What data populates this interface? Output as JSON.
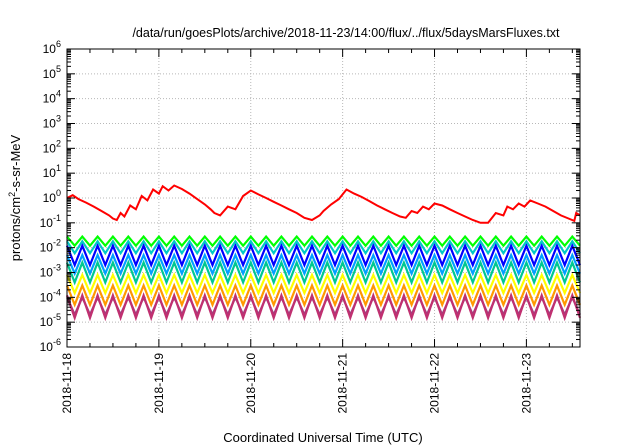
{
  "chart_data": {
    "type": "line",
    "title": "/data/run/goesPlots/archive/2018-11-23/14:00/flux/../flux/5daysMarsFluxes.txt",
    "xlabel": "Coordinated Universal Time (UTC)",
    "ylabel": {
      "base": "protons/cm",
      "sup": "2",
      "rest": "-s-sr-MeV"
    },
    "yscale": "log",
    "ylim": [
      1e-06,
      1000000.0
    ],
    "xlim": [
      "2018-11-18T00:00",
      "2018-11-23T14:00"
    ],
    "y_tick_exponents": [
      -6,
      -5,
      -4,
      -3,
      -2,
      -1,
      0,
      1,
      2,
      3,
      4,
      5,
      6
    ],
    "x_ticks": [
      "2018-11-18",
      "2018-11-19",
      "2018-11-20",
      "2018-11-21",
      "2018-11-22",
      "2018-11-23"
    ],
    "grid": true,
    "legend": "none",
    "series": [
      {
        "color": "#ff0000",
        "x": [
          "2018-11-18T00:00",
          "2018-11-18T01:30",
          "2018-11-18T03:00",
          "2018-11-18T05:00",
          "2018-11-18T07:00",
          "2018-11-18T09:00",
          "2018-11-18T11:00",
          "2018-11-18T12:00",
          "2018-11-18T13:00",
          "2018-11-18T14:00",
          "2018-11-18T15:00",
          "2018-11-18T16:30",
          "2018-11-18T18:00",
          "2018-11-18T19:30",
          "2018-11-18T21:00",
          "2018-11-18T22:30",
          "2018-11-19T00:00",
          "2018-11-19T01:00",
          "2018-11-19T02:30",
          "2018-11-19T04:00",
          "2018-11-19T06:00",
          "2018-11-19T08:00",
          "2018-11-19T10:00",
          "2018-11-19T12:00",
          "2018-11-19T13:30",
          "2018-11-19T14:30",
          "2018-11-19T16:00",
          "2018-11-19T18:00",
          "2018-11-19T20:00",
          "2018-11-19T22:00",
          "2018-11-20T00:00",
          "2018-11-20T02:00",
          "2018-11-20T04:00",
          "2018-11-20T06:00",
          "2018-11-20T08:00",
          "2018-11-20T10:00",
          "2018-11-20T12:00",
          "2018-11-20T14:00",
          "2018-11-20T16:00",
          "2018-11-20T18:00",
          "2018-11-20T19:00",
          "2018-11-20T21:00",
          "2018-11-20T23:00",
          "2018-11-21T01:00",
          "2018-11-21T03:00",
          "2018-11-21T05:00",
          "2018-11-21T07:00",
          "2018-11-21T09:00",
          "2018-11-21T11:00",
          "2018-11-21T13:00",
          "2018-11-21T15:00",
          "2018-11-21T16:30",
          "2018-11-21T18:00",
          "2018-11-21T19:30",
          "2018-11-21T21:00",
          "2018-11-21T22:30",
          "2018-11-22T00:00",
          "2018-11-22T02:00",
          "2018-11-22T04:00",
          "2018-11-22T06:00",
          "2018-11-22T08:00",
          "2018-11-22T10:00",
          "2018-11-22T12:00",
          "2018-11-22T14:00",
          "2018-11-22T16:00",
          "2018-11-22T18:00",
          "2018-11-22T19:00",
          "2018-11-22T20:30",
          "2018-11-22T22:00",
          "2018-11-22T23:30",
          "2018-11-23T01:00",
          "2018-11-23T03:00",
          "2018-11-23T05:00",
          "2018-11-23T07:00",
          "2018-11-23T09:00",
          "2018-11-23T11:00",
          "2018-11-23T12:30",
          "2018-11-23T13:00",
          "2018-11-23T14:00"
        ],
        "y": [
          1.0,
          1.3,
          0.9,
          0.65,
          0.45,
          0.3,
          0.2,
          0.15,
          0.13,
          0.25,
          0.18,
          0.5,
          0.35,
          1.2,
          0.8,
          2.2,
          1.5,
          3.0,
          2.0,
          3.2,
          2.3,
          1.5,
          0.9,
          0.55,
          0.35,
          0.25,
          0.2,
          0.45,
          0.35,
          1.2,
          2.0,
          1.4,
          1.0,
          0.7,
          0.5,
          0.35,
          0.25,
          0.16,
          0.13,
          0.2,
          0.3,
          0.55,
          0.9,
          2.2,
          1.5,
          1.1,
          0.75,
          0.5,
          0.35,
          0.25,
          0.18,
          0.16,
          0.3,
          0.25,
          0.45,
          0.35,
          0.6,
          0.5,
          0.35,
          0.25,
          0.18,
          0.13,
          0.1,
          0.1,
          0.25,
          0.2,
          0.45,
          0.35,
          0.6,
          0.45,
          0.8,
          0.6,
          0.45,
          0.3,
          0.2,
          0.15,
          0.12,
          0.25,
          0.2
        ]
      },
      {
        "color": "#00ff00",
        "peak": 0.028,
        "trough": 0.012
      },
      {
        "color": "#00c8c8",
        "peak": 0.018,
        "trough": 0.006
      },
      {
        "color": "#0000ff",
        "peak": 0.012,
        "trough": 0.002
      },
      {
        "color": "#00a0ff",
        "peak": 0.005,
        "trough": 0.0009
      },
      {
        "color": "#00c890",
        "peak": 0.0025,
        "trough": 0.0004
      },
      {
        "color": "#ffff00",
        "peak": 0.0008,
        "trough": 0.00015
      },
      {
        "color": "#ff9900",
        "peak": 0.0003,
        "trough": 5e-05
      },
      {
        "color": "#c03070",
        "peak": 0.00012,
        "trough": 1.5e-05
      },
      {
        "color": "#a04080",
        "peak": 0.0001,
        "trough": 2e-05
      }
    ]
  }
}
